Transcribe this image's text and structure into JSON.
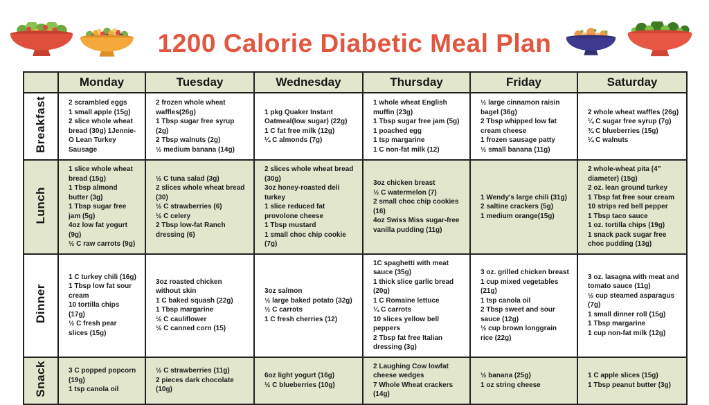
{
  "title": "1200 Calorie Diabetic Meal Plan",
  "colors": {
    "title_red": "#e2563f",
    "cell_green": "#e2e6cd",
    "border": "#202020",
    "text": "#1c1c1c"
  },
  "decorations": [
    "red-salad-bowl-icon",
    "yellow-fruit-bowl-icon",
    "blue-peach-bowl-icon",
    "red-greens-bowl-icon"
  ],
  "table": {
    "day_headers": [
      "Monday",
      "Tuesday",
      "Wednesday",
      "Thursday",
      "Friday",
      "Saturday"
    ],
    "rows": [
      {
        "label": "Breakfast",
        "cells": [
          [
            "2 scrambled eggs",
            "1 small apple (15g)",
            "2 slice whole wheat bread (30g) 1Jennie-O Lean Turkey Sausage"
          ],
          [
            "2 frozen whole wheat waffles(26g)",
            "1 Tbsp sugar free syrup (2g)",
            "2 Tbsp walnuts (2g)",
            "½ medium banana (14g)"
          ],
          [
            "1 pkg Quaker Instant Oatmeal(low sugar) (22g)",
            "1 C fat free milk (12g)",
            "¼ C almonds (7g)"
          ],
          [
            "1 whole wheat English muffin (23g)",
            "1 Tbsp sugar free jam (5g)",
            "1 poached egg",
            "1 tsp margarine",
            "1 C non-fat milk (12)"
          ],
          [
            "½ large cinnamon raisin bagel (36g)",
            "2 Tbsp whipped low fat cream cheese",
            "1 frozen sausage patty",
            "½ small banana (11g)"
          ],
          [
            "2 whole wheat waffles (26g)",
            "¼ C sugar free syrup (7g)",
            "¾ C blueberries (15g)",
            "¼ C walnuts"
          ]
        ]
      },
      {
        "label": "Lunch",
        "cells": [
          [
            "1 slice whole wheat bread (15g)",
            "1 Tbsp almond butter (3g)",
            "1 Tbsp sugar free jam (5g)",
            "4oz low fat yogurt (9g)",
            "½ C raw carrots (9g)"
          ],
          [
            "½ C tuna salad (3g)",
            "2 slices whole wheat bread (30)",
            "½ C strawberries (6)",
            "½ C celery",
            "2 Tbsp low-fat Ranch dressing (6)"
          ],
          [
            "2 slices whole wheat bread (30g)",
            "3oz honey-roasted deli turkey",
            "1 slice reduced fat provolone cheese",
            "1 Tbsp mustard",
            "1 small choc chip cookie (7g)"
          ],
          [
            "3oz chicken breast",
            "½ C watermelon (7)",
            "2 small choc chip cookies (16)",
            "4oz Swiss Miss sugar-free vanilla pudding (11g)"
          ],
          [
            "1 Wendy's large chili (31g)",
            "2 saltine crackers (5g)",
            "1 medium orange(15g)"
          ],
          [
            "2 whole-wheat pita (4” diameter) (15g)",
            "2 oz. lean ground turkey",
            "1 Tbsp fat free sour cream",
            "10 strips red bell pepper",
            "1 Tbsp taco sauce",
            "1 oz. tortilla chips (19g)",
            "1 snack pack sugar free choc pudding (13g)"
          ]
        ]
      },
      {
        "label": "Dinner",
        "cells": [
          [
            "1 C turkey chili (16g)",
            "1 Tbsp low fat sour cream",
            "10 tortilla chips (17g)",
            "½ C fresh pear slices (15g)"
          ],
          [
            "3oz roasted chicken without skin",
            "1 C baked squash (22g)",
            "1 Tbsp margarine",
            "½ C cauliflower",
            "½ C canned corn (15)"
          ],
          [
            "3oz salmon",
            "½ large baked potato (32g)",
            "½ C carrots",
            "1 C fresh cherries (12)"
          ],
          [
            "1C spaghetti with meat sauce (35g)",
            "1 thick slice garlic bread (20g)",
            "1 C Romaine lettuce",
            "¼ C carrots",
            "10 slices yellow bell peppers",
            "2 Tbsp fat free Italian dressing (3g)"
          ],
          [
            "3 oz. grilled chicken breast",
            "1 cup mixed vegetables (21g)",
            "1 tsp canola oil",
            "2 Tbsp sweet and sour sauce (12g)",
            "½ cup brown longgrain rice (22g)"
          ],
          [
            "3 oz. lasagna with meat and tomato sauce (11g)",
            "½ cup steamed asparagus (7g)",
            "1 small dinner roll (15g)",
            "1 Tbsp margarine",
            "1 cup non-fat milk (12g)"
          ]
        ]
      },
      {
        "label": "Snack",
        "cells": [
          [
            "3 C popped popcorn (19g)",
            "1 tsp canola oil"
          ],
          [
            "½ C strawberries (11g)",
            "2 pieces dark chocolate (10g)"
          ],
          [
            "6oz light yogurt (16g)",
            "½ C blueberries (10g)"
          ],
          [
            "2 Laughing Cow lowfat cheese wedges",
            "7 Whole Wheat crackers (14g)"
          ],
          [
            "½ banana (25g)",
            "1 oz string cheese"
          ],
          [
            "1 C apple slices (15g)",
            "1 Tbsp peanut butter (3g)"
          ]
        ]
      }
    ]
  }
}
